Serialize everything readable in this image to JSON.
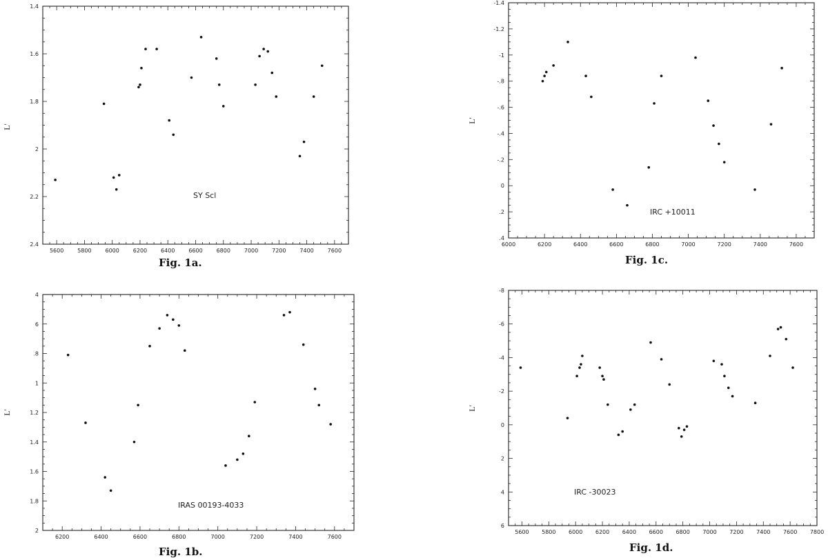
{
  "chart_data": [
    {
      "type": "scatter",
      "caption": "Fig. 1a.",
      "label": "SY Scl",
      "ylabel": "L'",
      "xlim": [
        5500,
        7700
      ],
      "ylim": [
        1.4,
        2.4
      ],
      "y_inverted": true,
      "xticks": [
        5600,
        5800,
        6000,
        6200,
        6400,
        6600,
        6800,
        7000,
        7200,
        7400,
        7600
      ],
      "yticks_labeled": [
        1.4,
        1.6,
        1.8,
        2,
        2.2,
        2.4
      ],
      "ytick_labels": [
        "1.4",
        "1.6",
        "1.8",
        "2",
        "2.2",
        "2.4"
      ],
      "points": [
        [
          5590,
          2.13
        ],
        [
          5940,
          1.81
        ],
        [
          6010,
          2.12
        ],
        [
          6030,
          2.17
        ],
        [
          6050,
          2.11
        ],
        [
          6190,
          1.74
        ],
        [
          6200,
          1.73
        ],
        [
          6210,
          1.66
        ],
        [
          6240,
          1.58
        ],
        [
          6320,
          1.58
        ],
        [
          6410,
          1.88
        ],
        [
          6440,
          1.94
        ],
        [
          6570,
          1.7
        ],
        [
          6640,
          1.53
        ],
        [
          6750,
          1.62
        ],
        [
          6770,
          1.73
        ],
        [
          6800,
          1.82
        ],
        [
          7030,
          1.73
        ],
        [
          7060,
          1.61
        ],
        [
          7090,
          1.58
        ],
        [
          7120,
          1.59
        ],
        [
          7150,
          1.68
        ],
        [
          7180,
          1.78
        ],
        [
          7350,
          2.03
        ],
        [
          7380,
          1.97
        ],
        [
          7450,
          1.78
        ],
        [
          7510,
          1.65
        ]
      ]
    },
    {
      "type": "scatter",
      "caption": "Fig. 1b.",
      "label": "IRAS 00193-4033",
      "ylabel": "L'",
      "xlim": [
        6100,
        7700
      ],
      "ylim": [
        0.4,
        2.0
      ],
      "y_inverted": true,
      "xticks": [
        6200,
        6400,
        6600,
        6800,
        7000,
        7200,
        7400,
        7600
      ],
      "yticks_labeled": [
        0.4,
        0.6,
        0.8,
        1.0,
        1.2,
        1.4,
        1.6,
        1.8,
        2.0
      ],
      "ytick_labels": [
        "4",
        "6",
        ".8",
        "1",
        "1.2",
        "1.4",
        "1.6",
        "1.8",
        "2"
      ],
      "points": [
        [
          6230,
          0.81
        ],
        [
          6320,
          1.27
        ],
        [
          6420,
          1.64
        ],
        [
          6450,
          1.73
        ],
        [
          6570,
          1.4
        ],
        [
          6590,
          1.15
        ],
        [
          6650,
          0.75
        ],
        [
          6700,
          0.63
        ],
        [
          6740,
          0.54
        ],
        [
          6770,
          0.57
        ],
        [
          6800,
          0.61
        ],
        [
          6830,
          0.78
        ],
        [
          7040,
          1.56
        ],
        [
          7100,
          1.52
        ],
        [
          7130,
          1.48
        ],
        [
          7160,
          1.36
        ],
        [
          7190,
          1.13
        ],
        [
          7340,
          0.54
        ],
        [
          7370,
          0.52
        ],
        [
          7440,
          0.74
        ],
        [
          7500,
          1.04
        ],
        [
          7520,
          1.15
        ],
        [
          7580,
          1.28
        ]
      ]
    },
    {
      "type": "scatter",
      "caption": "Fig. 1c.",
      "label": "IRC +10011",
      "ylabel": "L'",
      "xlim": [
        6000,
        7700
      ],
      "ylim": [
        -1.4,
        0.4
      ],
      "y_inverted": true,
      "xticks": [
        6000,
        6200,
        6400,
        6600,
        6800,
        7000,
        7200,
        7400,
        7600
      ],
      "yticks_labeled": [
        -1.4,
        -1.2,
        -1.0,
        -0.8,
        -0.6,
        -0.4,
        -0.2,
        0.0,
        0.2,
        0.4
      ],
      "ytick_labels": [
        "-1.4",
        "-1.2",
        "-1",
        "-.8",
        "-.6",
        "-.4",
        "-.2",
        "0",
        ".2",
        ".4"
      ],
      "points": [
        [
          6190,
          -0.8
        ],
        [
          6200,
          -0.84
        ],
        [
          6210,
          -0.87
        ],
        [
          6250,
          -0.92
        ],
        [
          6330,
          -1.1
        ],
        [
          6430,
          -0.84
        ],
        [
          6460,
          -0.68
        ],
        [
          6580,
          0.03
        ],
        [
          6660,
          0.15
        ],
        [
          6780,
          -0.14
        ],
        [
          6810,
          -0.63
        ],
        [
          6850,
          -0.84
        ],
        [
          7040,
          -0.98
        ],
        [
          7110,
          -0.65
        ],
        [
          7140,
          -0.46
        ],
        [
          7170,
          -0.32
        ],
        [
          7200,
          -0.18
        ],
        [
          7370,
          0.03
        ],
        [
          7460,
          -0.47
        ],
        [
          7520,
          -0.9
        ]
      ]
    },
    {
      "type": "scatter",
      "caption": "Fig. 1d.",
      "label": "IRC -30023",
      "ylabel": "L'",
      "xlim": [
        5500,
        7800
      ],
      "ylim": [
        -0.8,
        0.6
      ],
      "y_inverted": true,
      "xticks": [
        5600,
        5800,
        6000,
        6200,
        6400,
        6600,
        6800,
        7000,
        7200,
        7400,
        7600,
        7800
      ],
      "yticks_labeled": [
        -0.8,
        -0.6,
        -0.4,
        -0.2,
        0.0,
        0.2,
        0.4,
        0.6
      ],
      "ytick_labels": [
        "-8",
        "-6",
        "-4",
        "-2",
        "0",
        "2",
        "4",
        "6"
      ],
      "points": [
        [
          5590,
          -0.34
        ],
        [
          5940,
          -0.04
        ],
        [
          6010,
          -0.29
        ],
        [
          6030,
          -0.34
        ],
        [
          6040,
          -0.36
        ],
        [
          6050,
          -0.41
        ],
        [
          6180,
          -0.34
        ],
        [
          6200,
          -0.29
        ],
        [
          6210,
          -0.27
        ],
        [
          6240,
          -0.12
        ],
        [
          6320,
          0.06
        ],
        [
          6350,
          0.04
        ],
        [
          6410,
          -0.09
        ],
        [
          6440,
          -0.12
        ],
        [
          6560,
          -0.49
        ],
        [
          6640,
          -0.39
        ],
        [
          6700,
          -0.24
        ],
        [
          6770,
          0.02
        ],
        [
          6790,
          0.07
        ],
        [
          6810,
          0.03
        ],
        [
          6830,
          0.01
        ],
        [
          7030,
          -0.38
        ],
        [
          7090,
          -0.36
        ],
        [
          7110,
          -0.29
        ],
        [
          7140,
          -0.22
        ],
        [
          7170,
          -0.17
        ],
        [
          7340,
          -0.13
        ],
        [
          7450,
          -0.41
        ],
        [
          7510,
          -0.57
        ],
        [
          7530,
          -0.58
        ],
        [
          7570,
          -0.51
        ],
        [
          7620,
          -0.34
        ]
      ]
    }
  ]
}
